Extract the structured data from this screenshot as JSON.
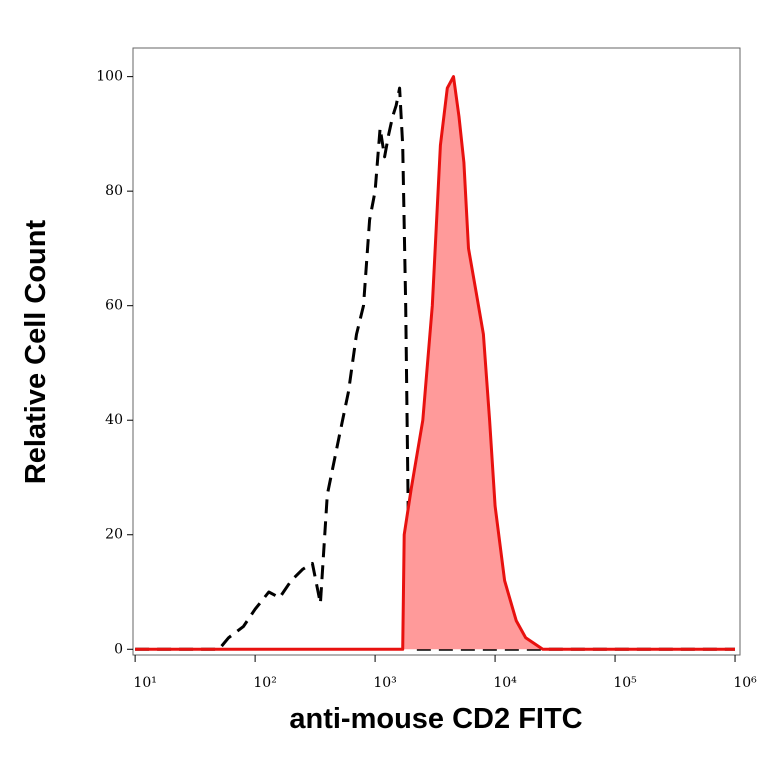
{
  "chart_data": {
    "type": "line",
    "xlabel": "anti-mouse CD2 FITC",
    "ylabel": "Relative Cell Count",
    "xscale": "log",
    "xlim": [
      9.6,
      1100000
    ],
    "ylim": [
      -1,
      105
    ],
    "xticks": [
      {
        "value": 10,
        "label": "10¹"
      },
      {
        "value": 100,
        "label": "10²"
      },
      {
        "value": 1000,
        "label": "10³"
      },
      {
        "value": 10000,
        "label": "10⁴"
      },
      {
        "value": 100000,
        "label": "10⁵"
      },
      {
        "value": 1000000,
        "label": "10⁶"
      }
    ],
    "yticks": [
      0,
      20,
      40,
      60,
      80,
      100
    ],
    "series": [
      {
        "color": "#000000",
        "dash": true,
        "x": [
          10,
          50,
          60,
          80,
          100,
          130,
          160,
          200,
          250,
          300,
          350,
          400,
          500,
          600,
          700,
          800,
          900,
          1000,
          1100,
          1200,
          1300,
          1400,
          1500,
          1600,
          1700,
          1800,
          1900,
          2000,
          1000000
        ],
        "values": [
          0,
          0,
          2,
          4,
          7,
          10,
          9,
          12,
          14,
          15,
          8,
          27,
          37,
          45,
          55,
          60,
          75,
          80,
          91,
          86,
          90,
          93,
          95,
          98,
          88,
          60,
          20,
          0,
          0
        ]
      },
      {
        "color": "#e8110f",
        "fill": "#ff9a9a",
        "x": [
          10,
          1700,
          1750,
          2000,
          2500,
          3000,
          3500,
          4000,
          4500,
          5000,
          5500,
          6000,
          7000,
          8000,
          9000,
          10000,
          12000,
          15000,
          18000,
          25000,
          1000000
        ],
        "values": [
          0,
          0,
          20,
          28,
          40,
          60,
          88,
          98,
          100,
          93,
          85,
          70,
          62,
          55,
          40,
          25,
          12,
          5,
          2,
          0,
          0
        ]
      }
    ]
  }
}
